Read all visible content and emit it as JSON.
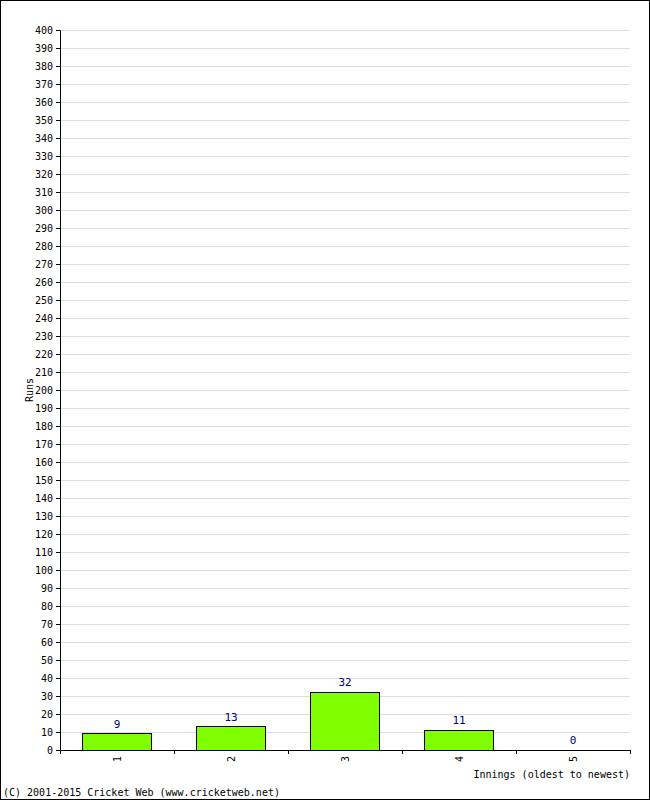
{
  "chart_data": {
    "type": "bar",
    "categories": [
      "1",
      "2",
      "3",
      "4",
      "5"
    ],
    "values": [
      9,
      13,
      32,
      11,
      0
    ],
    "color": "#80ff00",
    "x_label": "Innings (oldest to newest)",
    "y_label": "Runs",
    "annotations": [
      "(C) 2001-2015 Cricket Web (www.cricketweb.net)"
    ],
    "ylim": [
      0,
      400
    ],
    "yticks": [
      0,
      10,
      20,
      30,
      40,
      50,
      60,
      70,
      80,
      90,
      100,
      110,
      120,
      130,
      140,
      150,
      160,
      170,
      180,
      190,
      200,
      210,
      220,
      230,
      240,
      250,
      260,
      270,
      280,
      290,
      300,
      310,
      320,
      330,
      340,
      350,
      360,
      370,
      380,
      390,
      400
    ],
    "grid": true,
    "data_labels": true
  }
}
